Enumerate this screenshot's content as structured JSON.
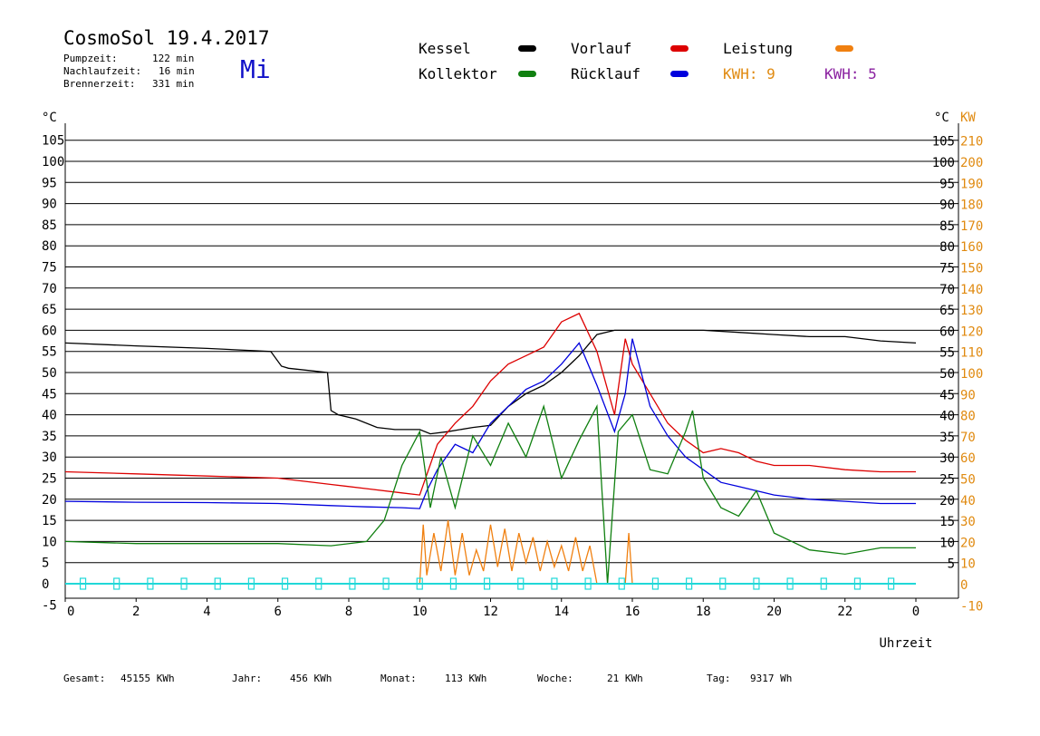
{
  "header": {
    "title": "CosmoSol 19.4.2017",
    "day_of_week": "Mi",
    "stats": [
      {
        "label": "Pumpzeit:",
        "value": "122 min"
      },
      {
        "label": "Nachlaufzeit:",
        "value": "16 min"
      },
      {
        "label": "Brennerzeit:",
        "value": "331 min"
      }
    ]
  },
  "legend": [
    {
      "name": "Kessel",
      "color": "#000000"
    },
    {
      "name": "Vorlauf",
      "color": "#dd0000"
    },
    {
      "name": "Leistung",
      "color": "#f08010"
    },
    {
      "name": "Kollektor",
      "color": "#108010"
    },
    {
      "name": "Rücklauf",
      "color": "#0000dd"
    }
  ],
  "kwh_labels": [
    {
      "text": "KWH: 9",
      "color": "#e08a10"
    },
    {
      "text": "KWH: 5",
      "color": "#8a20a0"
    }
  ],
  "footer": [
    {
      "label": "Gesamt:",
      "value": "45155 KWh"
    },
    {
      "label": "Jahr:",
      "value": "456 KWh"
    },
    {
      "label": "Monat:",
      "value": "113 KWh"
    },
    {
      "label": "Woche:",
      "value": "21 KWh"
    },
    {
      "label": "Tag:",
      "value": "9317 Wh"
    }
  ],
  "chart_data": {
    "type": "line",
    "xlabel": "Uhrzeit",
    "ylabel_left": "°C",
    "ylabel_right_1": "°C",
    "ylabel_right_2": "KW",
    "xlim": [
      0,
      24
    ],
    "ylim": [
      -5,
      110
    ],
    "x_ticks": [
      "0",
      "2",
      "4",
      "6",
      "8",
      "10",
      "12",
      "14",
      "16",
      "18",
      "20",
      "22",
      "0"
    ],
    "y_ticks_left": [
      "-5",
      "0",
      "5",
      "10",
      "15",
      "20",
      "25",
      "30",
      "35",
      "40",
      "45",
      "50",
      "55",
      "60",
      "65",
      "70",
      "75",
      "80",
      "85",
      "90",
      "95",
      "100",
      "105"
    ],
    "y_ticks_right": [
      "5",
      "10",
      "15",
      "20",
      "25",
      "30",
      "35",
      "40",
      "45",
      "50",
      "55",
      "60",
      "65",
      "70",
      "75",
      "80",
      "85",
      "90",
      "95",
      "100",
      "105"
    ],
    "y_ticks_kw": [
      "-10",
      "0",
      "10",
      "20",
      "30",
      "40",
      "50",
      "60",
      "70",
      "80",
      "90",
      "100",
      "110",
      "120",
      "130",
      "140",
      "150",
      "160",
      "170",
      "180",
      "190",
      "200",
      "210"
    ],
    "grid": true,
    "series": [
      {
        "name": "Kessel",
        "color": "#000000",
        "x": [
          0,
          2,
          4,
          5.8,
          6.1,
          6.3,
          7.4,
          7.5,
          7.7,
          8.2,
          8.8,
          9.3,
          10.0,
          10.3,
          10.8,
          11.5,
          12.0,
          12.5,
          13.0,
          13.5,
          14.0,
          14.5,
          15.0,
          15.5,
          16.0,
          17.0,
          18.0,
          19.0,
          20.0,
          21.0,
          22.0,
          23.0,
          24.0
        ],
        "y": [
          57,
          56.3,
          55.7,
          55,
          51.5,
          51,
          50,
          41,
          40,
          39,
          37,
          36.5,
          36.5,
          35.5,
          36,
          37,
          37.5,
          42,
          45,
          47,
          50,
          54,
          59,
          60,
          60,
          60,
          60,
          59.5,
          59,
          58.5,
          58.5,
          57.5,
          57
        ]
      },
      {
        "name": "Vorlauf",
        "color": "#dd0000",
        "x": [
          0,
          2,
          4,
          6,
          7.5,
          8.5,
          9.5,
          10.0,
          10.5,
          11.0,
          11.5,
          12.0,
          12.5,
          13.0,
          13.5,
          14.0,
          14.5,
          15.0,
          15.5,
          15.8,
          16.0,
          16.5,
          17.0,
          17.5,
          18.0,
          18.5,
          19.0,
          19.5,
          20.0,
          21.0,
          22.0,
          23.0,
          24.0
        ],
        "y": [
          26.5,
          26,
          25.5,
          25,
          23.5,
          22.5,
          21.5,
          21,
          33,
          38,
          42,
          48,
          52,
          54,
          56,
          62,
          64,
          55,
          40,
          58,
          52,
          45,
          38,
          34,
          31,
          32,
          31,
          29,
          28,
          28,
          27,
          26.5,
          26.5
        ]
      },
      {
        "name": "Rücklauf",
        "color": "#0000dd",
        "x": [
          0,
          2,
          4,
          6,
          7.5,
          8.5,
          9.5,
          10.0,
          10.2,
          10.5,
          11.0,
          11.5,
          12.0,
          12.5,
          13.0,
          13.5,
          14.0,
          14.5,
          15.0,
          15.5,
          15.8,
          16.0,
          16.5,
          17.0,
          17.5,
          18.0,
          18.5,
          19.0,
          20.0,
          21.0,
          22.0,
          23.0,
          24.0
        ],
        "y": [
          19.5,
          19.3,
          19.2,
          19,
          18.5,
          18.2,
          18,
          17.8,
          22,
          27,
          33,
          31,
          38,
          42,
          46,
          48,
          52,
          57,
          47,
          36,
          45,
          58,
          42,
          35,
          30,
          27,
          24,
          23,
          21,
          20,
          19.5,
          19,
          19
        ]
      },
      {
        "name": "Kollektor",
        "color": "#108010",
        "x": [
          0,
          2,
          4,
          6,
          7.5,
          8.5,
          9.0,
          9.5,
          10.0,
          10.3,
          10.6,
          11.0,
          11.5,
          12.0,
          12.5,
          13.0,
          13.5,
          14.0,
          14.5,
          15.0,
          15.3,
          15.6,
          16.0,
          16.5,
          17.0,
          17.5,
          17.7,
          18.0,
          18.5,
          19.0,
          19.5,
          20.0,
          20.5,
          21.0,
          22.0,
          23.0,
          24.0
        ],
        "y": [
          10,
          9.5,
          9.5,
          9.5,
          9,
          10,
          15,
          28,
          36,
          18,
          30,
          18,
          35,
          28,
          38,
          30,
          42,
          25,
          34,
          42,
          0,
          36,
          40,
          27,
          26,
          36,
          41,
          25,
          18,
          16,
          22,
          12,
          10,
          8,
          7,
          8.5,
          8.5
        ]
      },
      {
        "name": "Leistung",
        "color": "#f08010",
        "x": [
          0,
          10.0,
          10.1,
          10.2,
          10.4,
          10.6,
          10.8,
          11.0,
          11.2,
          11.4,
          11.6,
          11.8,
          12.0,
          12.2,
          12.4,
          12.6,
          12.8,
          13.0,
          13.2,
          13.4,
          13.6,
          13.8,
          14.0,
          14.2,
          14.4,
          14.6,
          14.8,
          15.0,
          15.8,
          15.9,
          16.0,
          24.0
        ],
        "y": [
          0,
          0,
          14,
          2,
          12,
          3,
          15,
          2,
          12,
          2,
          8,
          3,
          14,
          4,
          13,
          3,
          12,
          5,
          11,
          3,
          10,
          4,
          9,
          3,
          11,
          3,
          9,
          0,
          0,
          12,
          0,
          0
        ]
      },
      {
        "name": "Pumpe",
        "color": "#20d8d8",
        "x": [
          0,
          24
        ],
        "y": [
          0,
          0
        ]
      }
    ]
  }
}
